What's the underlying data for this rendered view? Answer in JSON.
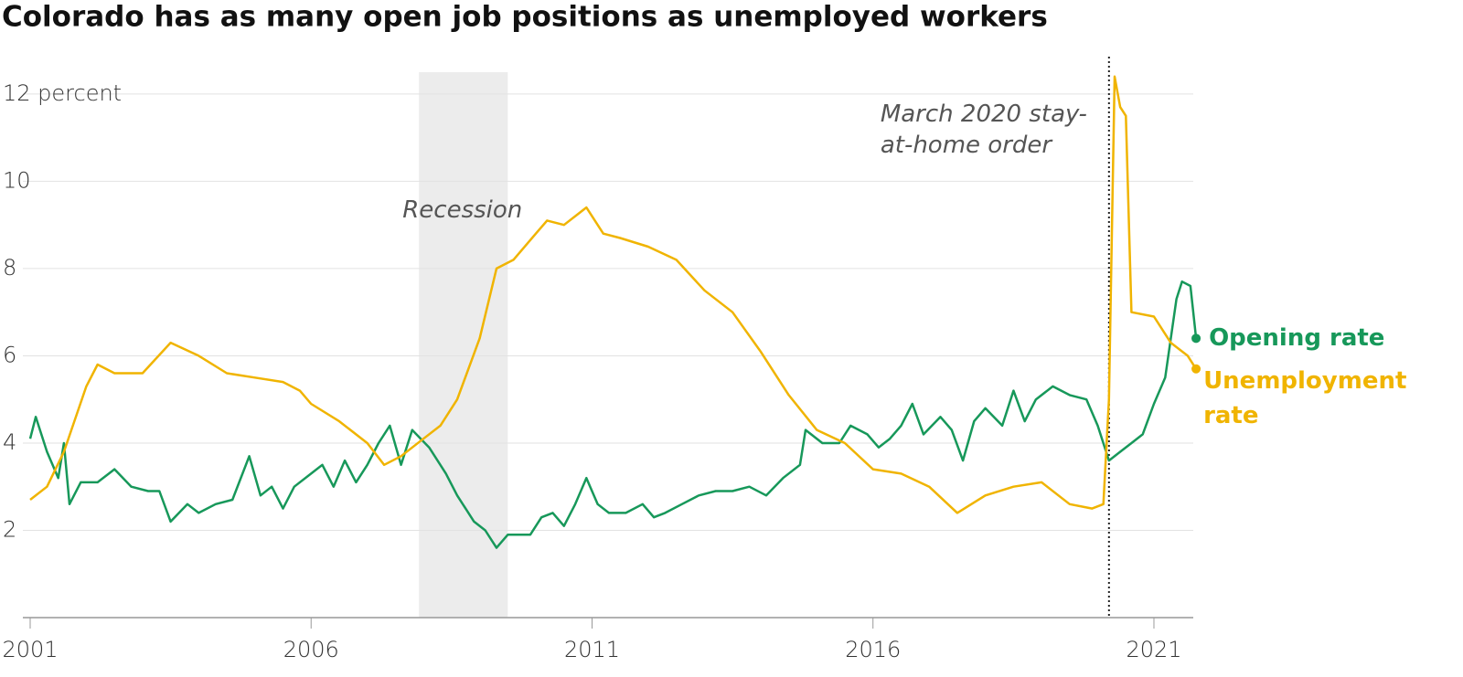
{
  "chart_data": {
    "type": "line",
    "title": "Colorado has as many open job positions as unemployed workers",
    "xlim": [
      2000.87,
      2021.7
    ],
    "xticks": [
      2001,
      2006,
      2011,
      2016,
      2021
    ],
    "ylim": [
      0,
      12.5
    ],
    "yticks": [
      2,
      4,
      6,
      8,
      10,
      {
        "value": 12,
        "label": "12 percent"
      }
    ],
    "grid": true,
    "recession": {
      "label": "Recession",
      "range": [
        2007.92,
        2009.5
      ]
    },
    "event": {
      "label": "March 2020 stay-at-home order",
      "x": 2020.2
    },
    "series": [
      {
        "name": "Opening rate",
        "color": "#17985a",
        "x": [
          2001.0,
          2001.1,
          2001.3,
          2001.5,
          2001.6,
          2001.7,
          2001.9,
          2002.2,
          2002.5,
          2002.8,
          2003.1,
          2003.3,
          2003.5,
          2003.8,
          2004.0,
          2004.3,
          2004.6,
          2004.9,
          2005.1,
          2005.3,
          2005.5,
          2005.7,
          2006.0,
          2006.2,
          2006.4,
          2006.6,
          2006.8,
          2007.0,
          2007.2,
          2007.4,
          2007.6,
          2007.8,
          2008.1,
          2008.4,
          2008.6,
          2008.9,
          2009.1,
          2009.3,
          2009.5,
          2009.9,
          2010.1,
          2010.3,
          2010.5,
          2010.7,
          2010.9,
          2011.1,
          2011.3,
          2011.6,
          2011.9,
          2012.1,
          2012.3,
          2012.6,
          2012.9,
          2013.2,
          2013.5,
          2013.8,
          2014.1,
          2014.4,
          2014.7,
          2014.8,
          2015.1,
          2015.4,
          2015.6,
          2015.9,
          2016.1,
          2016.3,
          2016.5,
          2016.7,
          2016.9,
          2017.2,
          2017.4,
          2017.6,
          2017.8,
          2018.0,
          2018.3,
          2018.5,
          2018.7,
          2018.9,
          2019.2,
          2019.5,
          2019.8,
          2020.0,
          2020.2,
          2020.4,
          2020.6,
          2020.8,
          2021.0,
          2021.2,
          2021.4,
          2021.5,
          2021.65,
          2021.75
        ],
        "values": [
          4.1,
          4.6,
          3.8,
          3.2,
          4.0,
          2.6,
          3.1,
          3.1,
          3.4,
          3.0,
          2.9,
          2.9,
          2.2,
          2.6,
          2.4,
          2.6,
          2.7,
          3.7,
          2.8,
          3.0,
          2.5,
          3.0,
          3.3,
          3.5,
          3.0,
          3.6,
          3.1,
          3.5,
          4.0,
          4.4,
          3.5,
          4.3,
          3.9,
          3.3,
          2.8,
          2.2,
          2.0,
          1.6,
          1.9,
          1.9,
          2.3,
          2.4,
          2.1,
          2.6,
          3.2,
          2.6,
          2.4,
          2.4,
          2.6,
          2.3,
          2.4,
          2.6,
          2.8,
          2.9,
          2.9,
          3.0,
          2.8,
          3.2,
          3.5,
          4.3,
          4.0,
          4.0,
          4.4,
          4.2,
          3.9,
          4.1,
          4.4,
          4.9,
          4.2,
          4.6,
          4.3,
          3.6,
          4.5,
          4.8,
          4.4,
          5.2,
          4.5,
          5.0,
          5.3,
          5.1,
          5.0,
          4.4,
          3.6,
          3.8,
          4.0,
          4.2,
          4.9,
          5.5,
          7.3,
          7.7,
          7.6,
          6.4
        ]
      },
      {
        "name": "Unemployment rate",
        "color": "#f0b400",
        "x": [
          2001.0,
          2001.3,
          2001.6,
          2002.0,
          2002.2,
          2002.5,
          2003.0,
          2003.5,
          2004.0,
          2004.5,
          2005.0,
          2005.5,
          2005.8,
          2006.0,
          2006.5,
          2007.0,
          2007.3,
          2007.6,
          2008.0,
          2008.3,
          2008.6,
          2009.0,
          2009.3,
          2009.6,
          2010.0,
          2010.2,
          2010.5,
          2010.9,
          2011.2,
          2011.5,
          2012.0,
          2012.5,
          2013.0,
          2013.5,
          2014.0,
          2014.5,
          2015.0,
          2015.5,
          2016.0,
          2016.5,
          2017.0,
          2017.5,
          2018.0,
          2018.5,
          2019.0,
          2019.5,
          2019.9,
          2020.1,
          2020.2,
          2020.3,
          2020.4,
          2020.5,
          2020.6,
          2021.0,
          2021.3,
          2021.6,
          2021.75
        ],
        "values": [
          2.7,
          3.0,
          3.8,
          5.3,
          5.8,
          5.6,
          5.6,
          6.3,
          6.0,
          5.6,
          5.5,
          5.4,
          5.2,
          4.9,
          4.5,
          4.0,
          3.5,
          3.7,
          4.1,
          4.4,
          5.0,
          6.4,
          8.0,
          8.2,
          8.8,
          9.1,
          9.0,
          9.4,
          8.8,
          8.7,
          8.5,
          8.2,
          7.5,
          7.0,
          6.1,
          5.1,
          4.3,
          4.0,
          3.4,
          3.3,
          3.0,
          2.4,
          2.8,
          3.0,
          3.1,
          2.6,
          2.5,
          2.6,
          5.0,
          12.4,
          11.7,
          11.5,
          7.0,
          6.9,
          6.3,
          6.0,
          5.7
        ]
      }
    ]
  }
}
